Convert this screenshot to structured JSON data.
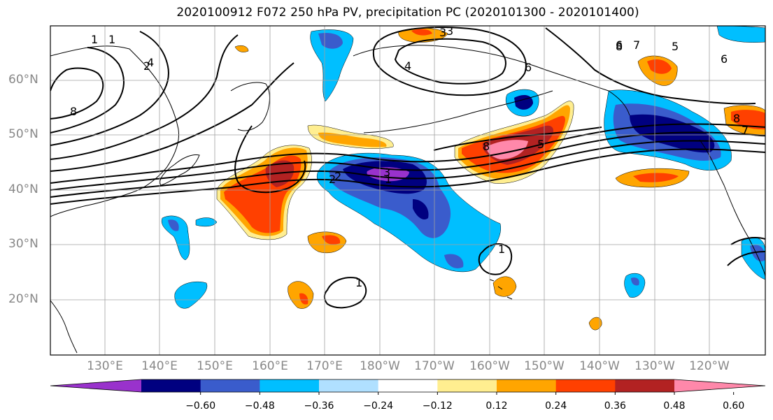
{
  "title": "2020100912 F072 250 hPa PV, precipitation PC (2020101300 - 2020101400)",
  "map": {
    "lat_labels": [
      "60°N",
      "50°N",
      "40°N",
      "30°N",
      "20°N"
    ],
    "lon_labels": [
      "130°E",
      "140°E",
      "150°E",
      "160°E",
      "170°E",
      "180°W",
      "170°W",
      "160°W",
      "150°W",
      "140°W",
      "130°W",
      "120°W"
    ],
    "contour_labels": [
      "1",
      "1",
      "2",
      "2",
      "3",
      "3",
      "4",
      "4",
      "5",
      "6",
      "6",
      "6",
      "7",
      "7",
      "8",
      "8",
      "8",
      "8",
      "1",
      "1",
      "1",
      "2",
      "3",
      "5"
    ]
  },
  "colorbar": {
    "colors": [
      "#9932cc",
      "#000080",
      "#3a5ccc",
      "#00bfff",
      "#b0e0ff",
      "#ffffff",
      "#ffee90",
      "#ffa500",
      "#ff4000",
      "#b22222",
      "#ff88aa"
    ],
    "ticks": [
      "−0.60",
      "−0.48",
      "−0.36",
      "−0.24",
      "−0.12",
      "0.12",
      "0.24",
      "0.36",
      "0.48",
      "0.60"
    ]
  }
}
